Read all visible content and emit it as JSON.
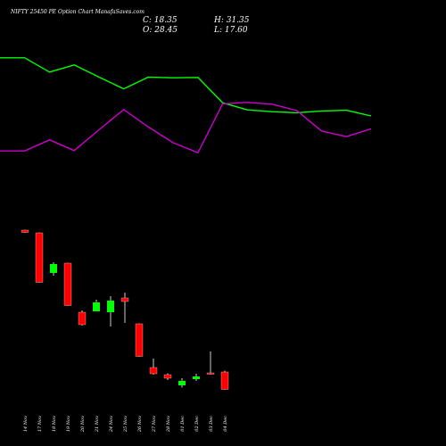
{
  "header": {
    "title": "NIFTY 25450  PE Option  Chart ManafaSaves.com",
    "c_label": "C: 18.35",
    "o_label": "O: 28.45",
    "h_label": "H: 31.35",
    "l_label": "L: 17.60"
  },
  "colors": {
    "background": "#000000",
    "up": "#00ff00",
    "down": "#ff0000",
    "line1": "#00ff00",
    "line2": "#cc00cc",
    "text": "#ffffff"
  },
  "chart_data": [
    {
      "type": "line",
      "grid": false,
      "series": [
        {
          "values": [
            92.6,
            92.6,
            84.6,
            88.6,
            81.8,
            75.2,
            81.8,
            81.4,
            81.6,
            67.4,
            63.4,
            62.4,
            61.8,
            62.8,
            63.2,
            60.0
          ]
        },
        {
          "values": [
            40.4,
            40.4,
            46.6,
            40.6,
            52.2,
            63.6,
            53.8,
            45.0,
            39.4,
            66.8,
            67.6,
            66.6,
            63.0,
            51.6,
            48.4,
            52.8
          ]
        }
      ]
    },
    {
      "type": "candlestick",
      "grid": false,
      "categories": [
        "14 Nov",
        "17 Nov",
        "18 Nov",
        "19 Nov",
        "20 Nov",
        "21 Nov",
        "24 Nov",
        "25 Nov",
        "26 Nov",
        "27 Nov",
        "28 Nov",
        "01 Dec",
        "02 Dec",
        "03 Dec",
        "04 Dec"
      ],
      "candles": [
        {
          "open": 232.0,
          "high": 232.5,
          "low": 229.0,
          "close": 229.5
        },
        {
          "open": 229.0,
          "high": 229.5,
          "low": 173.0,
          "close": 173.5
        },
        {
          "open": 184.0,
          "high": 196.0,
          "low": 181.0,
          "close": 194.0
        },
        {
          "open": 195.0,
          "high": 195.5,
          "low": 147.0,
          "close": 147.5
        },
        {
          "open": 140.0,
          "high": 142.0,
          "low": 125.0,
          "close": 126.0
        },
        {
          "open": 141.0,
          "high": 154.0,
          "low": 141.0,
          "close": 151.0
        },
        {
          "open": 140.0,
          "high": 158.0,
          "low": 124.0,
          "close": 153.0
        },
        {
          "open": 156.0,
          "high": 162.0,
          "low": 128.0,
          "close": 152.0
        },
        {
          "open": 127.0,
          "high": 127.5,
          "low": 90.0,
          "close": 90.5
        },
        {
          "open": 78.0,
          "high": 88.0,
          "low": 70.0,
          "close": 71.0
        },
        {
          "open": 70.0,
          "high": 71.5,
          "low": 64.0,
          "close": 66.0
        },
        {
          "open": 58.0,
          "high": 66.0,
          "low": 55.5,
          "close": 63.0
        },
        {
          "open": 65.0,
          "high": 71.0,
          "low": 63.0,
          "close": 68.0
        },
        {
          "open": 72.0,
          "high": 96.0,
          "low": 70.0,
          "close": 70.5
        },
        {
          "open": 73.0,
          "high": 74.5,
          "low": 53.0,
          "close": 53.5
        }
      ]
    }
  ]
}
